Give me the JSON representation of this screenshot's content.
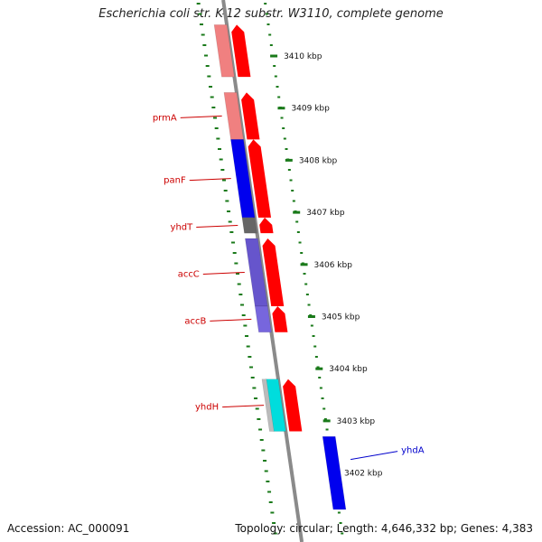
{
  "title": "Escherichia coli str. K-12 substr. W3110, complete genome",
  "footer": {
    "accession": "Accession: AC_000091",
    "topology": "Topology: circular; Length: 4,646,332 bp; Genes: 4,383"
  },
  "colors": {
    "backbone": "#8a8a8a",
    "tick": "#1a7a1a",
    "gene_label": "#cc0000",
    "other_label": "#0000cc",
    "forward_arrow": "#ff0000"
  },
  "scale": {
    "unit": "kbp",
    "ticks": [
      {
        "label": "3410 kbp",
        "pos": 3410
      },
      {
        "label": "3409 kbp",
        "pos": 3409
      },
      {
        "label": "3408 kbp",
        "pos": 3408
      },
      {
        "label": "3407 kbp",
        "pos": 3407
      },
      {
        "label": "3406 kbp",
        "pos": 3406
      },
      {
        "label": "3405 kbp",
        "pos": 3405
      },
      {
        "label": "3404 kbp",
        "pos": 3404
      },
      {
        "label": "3403 kbp",
        "pos": 3403
      },
      {
        "label": "3402 kbp",
        "pos": 3402
      }
    ]
  },
  "genes": [
    {
      "name": "prmA",
      "start": 3409.3,
      "end": 3408.4,
      "color": "#f08080"
    },
    {
      "name": "panF",
      "start": 3408.4,
      "end": 3406.9,
      "color": "#0000ee"
    },
    {
      "name": "yhdT",
      "start": 3406.9,
      "end": 3406.6,
      "color": "#666666"
    },
    {
      "name": "accC",
      "start": 3406.5,
      "end": 3405.2,
      "color": "#6655cc"
    },
    {
      "name": "accB",
      "start": 3405.2,
      "end": 3404.7,
      "color": "#7766dd"
    },
    {
      "name": "yhdH",
      "start": 3403.8,
      "end": 3402.8,
      "color": "#00dddd"
    },
    {
      "name": "",
      "start": 3410.6,
      "end": 3409.6,
      "color": "#f08080"
    }
  ],
  "others": [
    {
      "name": "yhdA",
      "start": 3402.7,
      "end": 3401.3,
      "color": "#0000ee"
    }
  ]
}
